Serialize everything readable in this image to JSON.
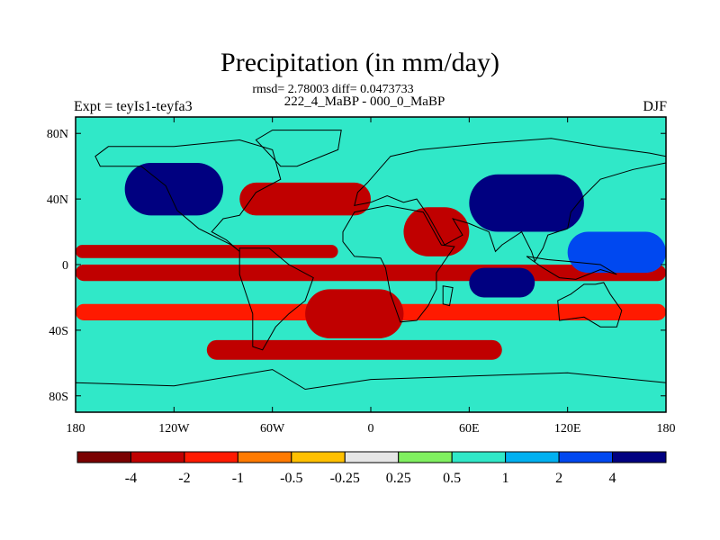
{
  "header": {
    "title": "Precipitation (in mm/day)",
    "stats": "rmsd= 2.78003 diff= 0.0473733",
    "subtitle": "222_4_MaBP - 000_0_MaBP",
    "left_label": "Expt = teyIs1-teyfa3",
    "right_label": "DJF"
  },
  "colors": {
    "palette": [
      "#7a0000",
      "#c00000",
      "#ff1a00",
      "#ff7a00",
      "#ffc000",
      "#e6e6e6",
      "#80f060",
      "#30e8c8",
      "#00b0f0",
      "#0048f0",
      "#000080"
    ],
    "coastline": "#000000"
  },
  "chart_data": {
    "type": "heatmap",
    "projection": "cylindrical-equidistant",
    "variable": "Precipitation difference",
    "units": "mm/day",
    "xlim": [
      -180,
      180
    ],
    "ylim": [
      -90,
      90
    ],
    "x_ticks": [
      "180",
      "120W",
      "60W",
      "0",
      "60E",
      "120E",
      "180"
    ],
    "y_ticks": [
      "80N",
      "40N",
      "0",
      "40S",
      "80S"
    ],
    "colorbar": {
      "levels": [
        "-4",
        "-2",
        "-1",
        "-0.5",
        "-0.25",
        "0.25",
        "0.5",
        "1",
        "2",
        "4"
      ],
      "open_ended": true
    },
    "regions": [
      {
        "name": "band-6S",
        "lon": [
          -180,
          180
        ],
        "lat": [
          -10,
          0
        ],
        "value": -3
      },
      {
        "name": "band-8N",
        "lon": [
          -180,
          -20
        ],
        "lat": [
          4,
          12
        ],
        "value": -3
      },
      {
        "name": "band-30S",
        "lon": [
          -180,
          180
        ],
        "lat": [
          -34,
          -24
        ],
        "value": -1.5
      },
      {
        "name": "band-52S",
        "lon": [
          -100,
          80
        ],
        "lat": [
          -58,
          -46
        ],
        "value": -2.5
      },
      {
        "name": "n-pacific-wet",
        "lon": [
          -150,
          -90
        ],
        "lat": [
          30,
          62
        ],
        "value": 5
      },
      {
        "name": "n-atlantic-dry",
        "lon": [
          -80,
          0
        ],
        "lat": [
          30,
          50
        ],
        "value": -4
      },
      {
        "name": "east-asia-wet",
        "lon": [
          60,
          130
        ],
        "lat": [
          20,
          55
        ],
        "value": 4
      },
      {
        "name": "arabia-dry",
        "lon": [
          20,
          60
        ],
        "lat": [
          5,
          35
        ],
        "value": -3
      },
      {
        "name": "indian-ocean-wet",
        "lon": [
          60,
          100
        ],
        "lat": [
          -20,
          -2
        ],
        "value": 5
      },
      {
        "name": "south-atlantic-dry",
        "lon": [
          -40,
          20
        ],
        "lat": [
          -45,
          -15
        ],
        "value": -3
      },
      {
        "name": "west-pacific-wet",
        "lon": [
          120,
          180
        ],
        "lat": [
          -5,
          20
        ],
        "value": 3
      },
      {
        "name": "southern-ocean",
        "lon": [
          -180,
          180
        ],
        "lat": [
          -76,
          -62
        ],
        "value": 0.8
      },
      {
        "name": "arctic",
        "lon": [
          -180,
          180
        ],
        "lat": [
          70,
          90
        ],
        "value": 0.8
      }
    ]
  }
}
